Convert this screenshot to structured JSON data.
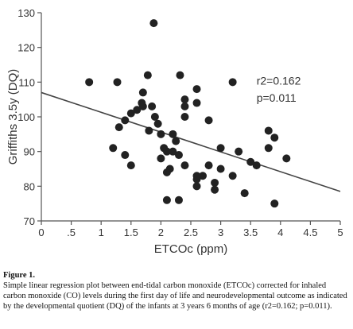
{
  "chart_data": {
    "type": "scatter",
    "xlabel": "ETCOc (ppm)",
    "ylabel": "Griffiths 3.5y (DQ)",
    "xlim": [
      0,
      5
    ],
    "ylim": [
      70,
      130
    ],
    "x_ticks": [
      0,
      0.5,
      1,
      1.5,
      2,
      2.5,
      3,
      3.5,
      4,
      4.5,
      5
    ],
    "x_tick_labels": [
      "0",
      ".5",
      "1",
      "1.5",
      "2",
      "2.5",
      "3",
      "3.5",
      "4",
      "4.5",
      "5"
    ],
    "y_ticks": [
      70,
      80,
      90,
      100,
      110,
      120,
      130
    ],
    "y_tick_labels": [
      "70",
      "80",
      "90",
      "100",
      "110",
      "120",
      "130"
    ],
    "grid": false,
    "marker_color": "#222222",
    "line_color": "#444444",
    "annotations": [
      "r2=0.162",
      "p=0.011"
    ],
    "regression_line": {
      "x": [
        0,
        5
      ],
      "y": [
        107,
        78.5
      ]
    },
    "points": [
      {
        "x": 0.8,
        "y": 110
      },
      {
        "x": 1.27,
        "y": 110
      },
      {
        "x": 1.2,
        "y": 91
      },
      {
        "x": 1.3,
        "y": 97
      },
      {
        "x": 1.4,
        "y": 89
      },
      {
        "x": 1.5,
        "y": 86
      },
      {
        "x": 1.4,
        "y": 99
      },
      {
        "x": 1.5,
        "y": 101
      },
      {
        "x": 1.6,
        "y": 102
      },
      {
        "x": 1.68,
        "y": 104
      },
      {
        "x": 1.7,
        "y": 107
      },
      {
        "x": 1.7,
        "y": 103
      },
      {
        "x": 1.78,
        "y": 112
      },
      {
        "x": 1.8,
        "y": 96
      },
      {
        "x": 1.85,
        "y": 103
      },
      {
        "x": 1.88,
        "y": 127
      },
      {
        "x": 1.9,
        "y": 100
      },
      {
        "x": 1.95,
        "y": 98
      },
      {
        "x": 2.0,
        "y": 95
      },
      {
        "x": 2.0,
        "y": 88
      },
      {
        "x": 2.05,
        "y": 91
      },
      {
        "x": 2.1,
        "y": 84
      },
      {
        "x": 2.1,
        "y": 90
      },
      {
        "x": 2.1,
        "y": 76
      },
      {
        "x": 2.15,
        "y": 85
      },
      {
        "x": 2.2,
        "y": 95
      },
      {
        "x": 2.2,
        "y": 90
      },
      {
        "x": 2.25,
        "y": 93
      },
      {
        "x": 2.3,
        "y": 89
      },
      {
        "x": 2.32,
        "y": 112
      },
      {
        "x": 2.3,
        "y": 76
      },
      {
        "x": 2.4,
        "y": 105
      },
      {
        "x": 2.4,
        "y": 103
      },
      {
        "x": 2.4,
        "y": 100
      },
      {
        "x": 2.4,
        "y": 86
      },
      {
        "x": 2.6,
        "y": 108
      },
      {
        "x": 2.6,
        "y": 104
      },
      {
        "x": 2.6,
        "y": 83
      },
      {
        "x": 2.6,
        "y": 80
      },
      {
        "x": 2.6,
        "y": 82
      },
      {
        "x": 2.7,
        "y": 83
      },
      {
        "x": 2.8,
        "y": 99
      },
      {
        "x": 2.8,
        "y": 86
      },
      {
        "x": 2.9,
        "y": 81
      },
      {
        "x": 2.9,
        "y": 79
      },
      {
        "x": 3.0,
        "y": 91
      },
      {
        "x": 3.0,
        "y": 85
      },
      {
        "x": 3.2,
        "y": 110
      },
      {
        "x": 3.2,
        "y": 83
      },
      {
        "x": 3.3,
        "y": 90
      },
      {
        "x": 3.4,
        "y": 78
      },
      {
        "x": 3.5,
        "y": 87
      },
      {
        "x": 3.6,
        "y": 86
      },
      {
        "x": 3.8,
        "y": 96
      },
      {
        "x": 3.8,
        "y": 91
      },
      {
        "x": 3.9,
        "y": 94
      },
      {
        "x": 3.9,
        "y": 75
      },
      {
        "x": 4.1,
        "y": 88
      }
    ]
  },
  "caption": {
    "label": "Figure 1.",
    "text": "Simple linear regression plot between end-tidal carbon monoxide (ETCOc) corrected for inhaled carbon monoxide (CO) levels during the first day of life and neurodevelopmental outcome as indicated by the developmental quotient (DQ) of the infants at 3 years 6 months of age (r2=0.162; p=0.011)."
  }
}
